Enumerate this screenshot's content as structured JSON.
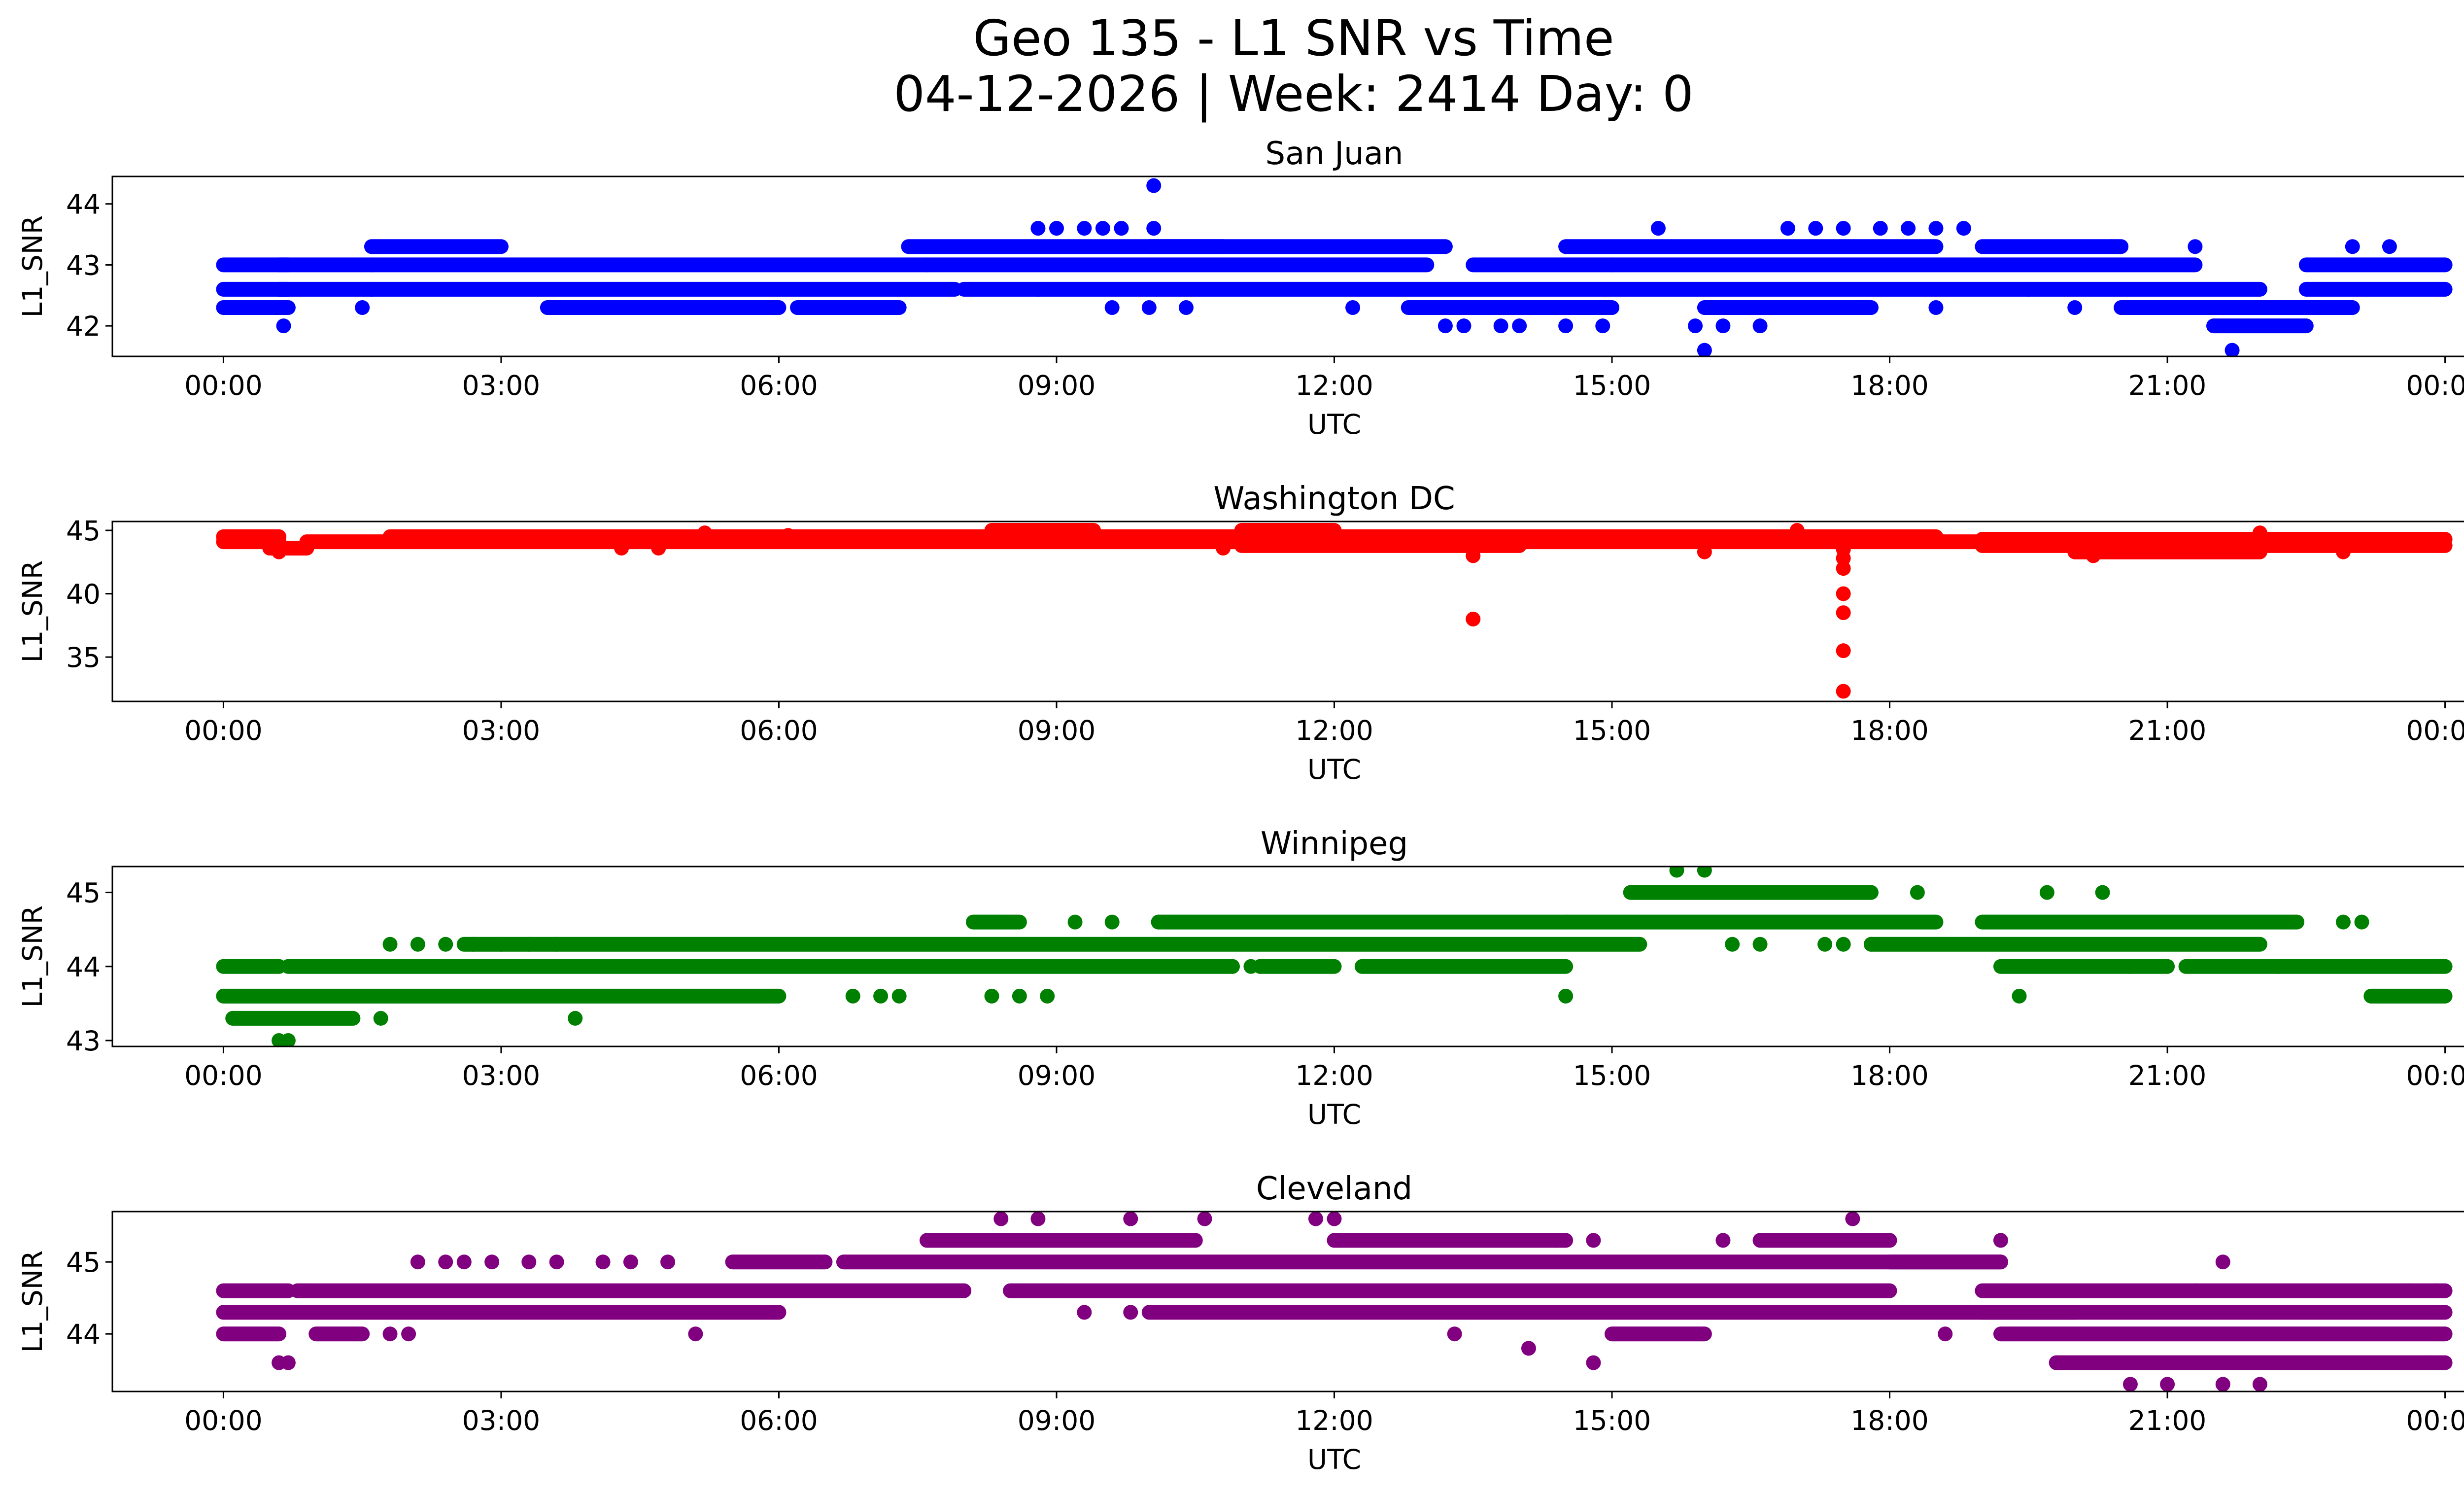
{
  "chart_data": {
    "type": "scatter",
    "title_line1": "Geo 135 - L1 SNR vs Time",
    "title_line2": "04-12-2026 | Week: 2414 Day: 0",
    "x_ticks": [
      "00:00",
      "03:00",
      "06:00",
      "09:00",
      "12:00",
      "15:00",
      "18:00",
      "21:00",
      "00:00"
    ],
    "x_range_hours": [
      -1.2,
      25.2
    ],
    "panels": [
      {
        "title": "San Juan",
        "xlabel": "UTC",
        "ylabel": "L1_SNR",
        "color": "#0000ff",
        "ylim": [
          41.5,
          44.45
        ],
        "yticks": [
          42,
          43,
          44
        ],
        "segments": [
          [
            0,
            0.7,
            43.0
          ],
          [
            0,
            0.7,
            42.6
          ],
          [
            0,
            0.7,
            42.3
          ],
          [
            0.6,
            1.6,
            43.0
          ],
          [
            0.6,
            1.6,
            42.6
          ],
          [
            1.6,
            3.0,
            43.3
          ],
          [
            1.6,
            7.6,
            43.0
          ],
          [
            1.6,
            7.9,
            42.6
          ],
          [
            3.5,
            6.0,
            42.3
          ],
          [
            6.2,
            7.3,
            42.3
          ],
          [
            7.4,
            10.8,
            43.3
          ],
          [
            7.6,
            13.0,
            43.0
          ],
          [
            8.0,
            19.5,
            42.6
          ],
          [
            10.0,
            13.2,
            43.3
          ],
          [
            12.8,
            14.0,
            42.3
          ],
          [
            13.5,
            15.0,
            43.0
          ],
          [
            14.0,
            15.0,
            42.3
          ],
          [
            14.5,
            18.5,
            43.3
          ],
          [
            15.0,
            21.3,
            43.0
          ],
          [
            16.0,
            17.8,
            42.3
          ],
          [
            19.0,
            20.5,
            43.3
          ],
          [
            19.5,
            22.0,
            42.6
          ],
          [
            20.5,
            23.0,
            42.3
          ],
          [
            21.5,
            22.5,
            42.0
          ],
          [
            22.5,
            24.0,
            42.6
          ],
          [
            22.5,
            24.0,
            43.0
          ]
        ],
        "points": [
          [
            0.65,
            42.0
          ],
          [
            1.5,
            42.3
          ],
          [
            10.05,
            44.3
          ],
          [
            10.05,
            43.6
          ],
          [
            8.8,
            43.6
          ],
          [
            9.0,
            43.6
          ],
          [
            9.3,
            43.6
          ],
          [
            9.5,
            43.6
          ],
          [
            9.7,
            43.6
          ],
          [
            9.6,
            42.3
          ],
          [
            10.0,
            42.3
          ],
          [
            10.4,
            42.3
          ],
          [
            8.8,
            42.6
          ],
          [
            12.2,
            42.3
          ],
          [
            13.2,
            42.0
          ],
          [
            13.4,
            42.0
          ],
          [
            13.8,
            42.0
          ],
          [
            14.0,
            42.0
          ],
          [
            14.5,
            42.0
          ],
          [
            14.9,
            42.0
          ],
          [
            15.5,
            43.6
          ],
          [
            16.0,
            41.6
          ],
          [
            15.9,
            42.0
          ],
          [
            16.2,
            42.0
          ],
          [
            16.6,
            42.0
          ],
          [
            16.9,
            43.6
          ],
          [
            17.2,
            43.6
          ],
          [
            17.5,
            43.6
          ],
          [
            17.9,
            43.6
          ],
          [
            18.2,
            43.6
          ],
          [
            18.5,
            43.6
          ],
          [
            18.8,
            43.6
          ],
          [
            17.1,
            42.3
          ],
          [
            18.5,
            42.3
          ],
          [
            20.4,
            43.3
          ],
          [
            20.0,
            42.3
          ],
          [
            21.3,
            43.3
          ],
          [
            21.7,
            41.6
          ],
          [
            23.0,
            43.3
          ],
          [
            23.4,
            43.3
          ]
        ]
      },
      {
        "title": "Washington DC",
        "xlabel": "UTC",
        "ylabel": "L1_SNR",
        "color": "#ff0000",
        "ylim": [
          31.5,
          45.7
        ],
        "yticks": [
          35,
          40,
          45
        ],
        "segments": [
          [
            0,
            0.6,
            44.1
          ],
          [
            0,
            0.6,
            44.5
          ],
          [
            0.5,
            0.9,
            43.6
          ],
          [
            0.9,
            19.0,
            44.1
          ],
          [
            1.8,
            18.5,
            44.5
          ],
          [
            8.3,
            9.4,
            45.0
          ],
          [
            11.0,
            12.0,
            45.0
          ],
          [
            11.0,
            14.0,
            43.8
          ],
          [
            19.0,
            24.0,
            43.8
          ],
          [
            19.0,
            24.0,
            44.3
          ],
          [
            20.0,
            22.0,
            43.3
          ]
        ],
        "points": [
          [
            0.6,
            43.3
          ],
          [
            4.3,
            43.6
          ],
          [
            4.7,
            43.6
          ],
          [
            5.2,
            44.8
          ],
          [
            6.1,
            44.6
          ],
          [
            10.8,
            43.6
          ],
          [
            13.5,
            43.0
          ],
          [
            13.5,
            38.0
          ],
          [
            16.0,
            43.3
          ],
          [
            17.0,
            45.0
          ],
          [
            17.5,
            43.5
          ],
          [
            17.5,
            42.8
          ],
          [
            17.5,
            42.0
          ],
          [
            17.5,
            40.0
          ],
          [
            17.5,
            38.5
          ],
          [
            17.5,
            35.5
          ],
          [
            17.5,
            32.3
          ],
          [
            20.2,
            43.0
          ],
          [
            22.0,
            44.8
          ],
          [
            22.9,
            43.3
          ]
        ]
      },
      {
        "title": "Winnipeg",
        "xlabel": "UTC",
        "ylabel": "L1_SNR",
        "color": "#008000",
        "ylim": [
          42.92,
          45.35
        ],
        "yticks": [
          43,
          44,
          45
        ],
        "segments": [
          [
            0,
            0.6,
            44.0
          ],
          [
            0,
            6.0,
            43.6
          ],
          [
            0.1,
            1.4,
            43.3
          ],
          [
            0.7,
            10.9,
            44.0
          ],
          [
            2.6,
            15.3,
            44.3
          ],
          [
            8.1,
            8.6,
            44.6
          ],
          [
            10.1,
            14.5,
            44.6
          ],
          [
            11.2,
            12.0,
            44.0
          ],
          [
            12.3,
            14.5,
            44.0
          ],
          [
            14.5,
            18.5,
            44.6
          ],
          [
            15.2,
            17.8,
            45.0
          ],
          [
            17.8,
            22.0,
            44.3
          ],
          [
            19.0,
            22.4,
            44.6
          ],
          [
            19.2,
            21.0,
            44.0
          ],
          [
            21.2,
            24.0,
            44.0
          ],
          [
            23.2,
            24.0,
            43.6
          ]
        ],
        "points": [
          [
            0.6,
            43.0
          ],
          [
            0.7,
            43.0
          ],
          [
            1.7,
            43.3
          ],
          [
            1.8,
            44.3
          ],
          [
            2.1,
            44.3
          ],
          [
            2.4,
            44.3
          ],
          [
            2.7,
            44.3
          ],
          [
            3.0,
            44.3
          ],
          [
            3.3,
            44.3
          ],
          [
            3.8,
            43.3
          ],
          [
            3.6,
            44.3
          ],
          [
            6.8,
            43.6
          ],
          [
            7.1,
            43.6
          ],
          [
            7.3,
            43.6
          ],
          [
            8.3,
            43.6
          ],
          [
            8.6,
            43.6
          ],
          [
            8.9,
            43.6
          ],
          [
            9.2,
            44.6
          ],
          [
            9.6,
            44.6
          ],
          [
            10.1,
            44.6
          ],
          [
            10.9,
            44.0
          ],
          [
            11.1,
            44.0
          ],
          [
            11.2,
            44.0
          ],
          [
            14.5,
            43.6
          ],
          [
            15.7,
            45.3
          ],
          [
            16.0,
            45.3
          ],
          [
            15.6,
            45.0
          ],
          [
            16.3,
            44.3
          ],
          [
            16.6,
            44.3
          ],
          [
            17.3,
            44.3
          ],
          [
            17.5,
            44.3
          ],
          [
            17.8,
            44.3
          ],
          [
            18.3,
            45.0
          ],
          [
            19.4,
            43.6
          ],
          [
            19.7,
            45.0
          ],
          [
            20.3,
            45.0
          ],
          [
            20.6,
            44.0
          ],
          [
            22.2,
            44.0
          ],
          [
            22.9,
            44.6
          ],
          [
            23.1,
            44.6
          ]
        ]
      },
      {
        "title": "Cleveland",
        "xlabel": "UTC",
        "ylabel": "L1_SNR",
        "color": "#800080",
        "ylim": [
          43.2,
          45.7
        ],
        "yticks": [
          44,
          45
        ],
        "segments": [
          [
            0,
            0.6,
            44.0
          ],
          [
            0,
            0.7,
            44.6
          ],
          [
            0,
            6.0,
            44.3
          ],
          [
            0.8,
            8.0,
            44.6
          ],
          [
            1.0,
            1.5,
            44.0
          ],
          [
            5.5,
            6.5,
            45.0
          ],
          [
            6.7,
            19.2,
            45.0
          ],
          [
            7.6,
            10.5,
            45.3
          ],
          [
            8.5,
            18.0,
            44.6
          ],
          [
            10.0,
            20.0,
            44.3
          ],
          [
            12.0,
            14.5,
            45.3
          ],
          [
            15.0,
            16.0,
            44.0
          ],
          [
            16.6,
            18.0,
            45.3
          ],
          [
            19.0,
            24.0,
            44.6
          ],
          [
            19.0,
            24.0,
            44.3
          ],
          [
            19.2,
            24.0,
            44.0
          ],
          [
            19.8,
            24.0,
            43.6
          ],
          [
            18.0,
            19.2,
            45.0
          ]
        ],
        "points": [
          [
            0.6,
            43.6
          ],
          [
            0.7,
            43.6
          ],
          [
            2.1,
            45.0
          ],
          [
            2.4,
            45.0
          ],
          [
            2.6,
            45.0
          ],
          [
            2.9,
            45.0
          ],
          [
            3.3,
            45.0
          ],
          [
            3.6,
            45.0
          ],
          [
            4.1,
            45.0
          ],
          [
            4.4,
            45.0
          ],
          [
            4.8,
            45.0
          ],
          [
            5.1,
            44.0
          ],
          [
            2.0,
            44.0
          ],
          [
            1.8,
            44.0
          ],
          [
            8.4,
            45.6
          ],
          [
            8.8,
            45.6
          ],
          [
            9.8,
            45.6
          ],
          [
            10.6,
            45.6
          ],
          [
            11.8,
            45.6
          ],
          [
            12.0,
            45.6
          ],
          [
            9.3,
            44.3
          ],
          [
            9.8,
            44.3
          ],
          [
            13.3,
            44.0
          ],
          [
            14.1,
            43.8
          ],
          [
            14.8,
            43.6
          ],
          [
            14.4,
            45.3
          ],
          [
            14.8,
            45.3
          ],
          [
            16.2,
            45.3
          ],
          [
            17.6,
            45.6
          ],
          [
            18.6,
            44.0
          ],
          [
            19.2,
            45.3
          ],
          [
            20.6,
            43.3
          ],
          [
            21.0,
            43.3
          ],
          [
            21.6,
            45.0
          ],
          [
            21.6,
            43.3
          ],
          [
            22.0,
            43.3
          ],
          [
            21.3,
            44.6
          ],
          [
            23.6,
            44.6
          ],
          [
            23.9,
            44.6
          ],
          [
            23.8,
            43.6
          ]
        ]
      }
    ]
  }
}
